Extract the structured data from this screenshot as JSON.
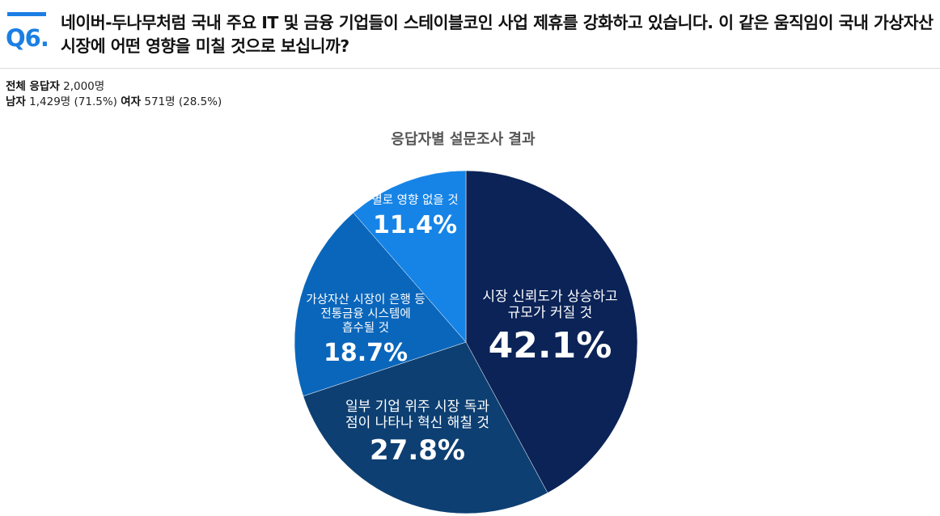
{
  "question": {
    "label": "Q6.",
    "text": "네이버-두나무처럼 국내 주요 IT 및 금융 기업들이 스테이블코인 사업 제휴를 강화하고 있습니다. 이 같은 움직임이 국내 가상자산 시장에 어떤 영향을 미칠 것으로 보십니까?"
  },
  "respondents": {
    "total_label": "전체 응답자",
    "total_value": "2,000명",
    "male_label": "남자",
    "male_value": "1,429명 (71.5%)",
    "female_label": "여자",
    "female_value": "571명 (28.5%)"
  },
  "chart_data": {
    "type": "pie",
    "title": "응답자별 설문조사 결과",
    "slices": [
      {
        "label_lines": [
          "시장 신뢰도가 상승하고",
          "규모가 커질 것"
        ],
        "value": 42.1,
        "value_label": "42.1%",
        "color": "#0b2357"
      },
      {
        "label_lines": [
          "일부 기업 위주 시장 독과",
          "점이 나타나 혁신 해칠 것"
        ],
        "value": 27.8,
        "value_label": "27.8%",
        "color": "#0d3f72"
      },
      {
        "label_lines": [
          "가상자산 시장이 은행 등",
          "전통금융 시스템에",
          "흡수될 것"
        ],
        "value": 18.7,
        "value_label": "18.7%",
        "color": "#0a66bb"
      },
      {
        "label_lines": [
          "별로 영향 없을 것"
        ],
        "value": 11.4,
        "value_label": "11.4%",
        "color": "#1684e6"
      }
    ]
  }
}
